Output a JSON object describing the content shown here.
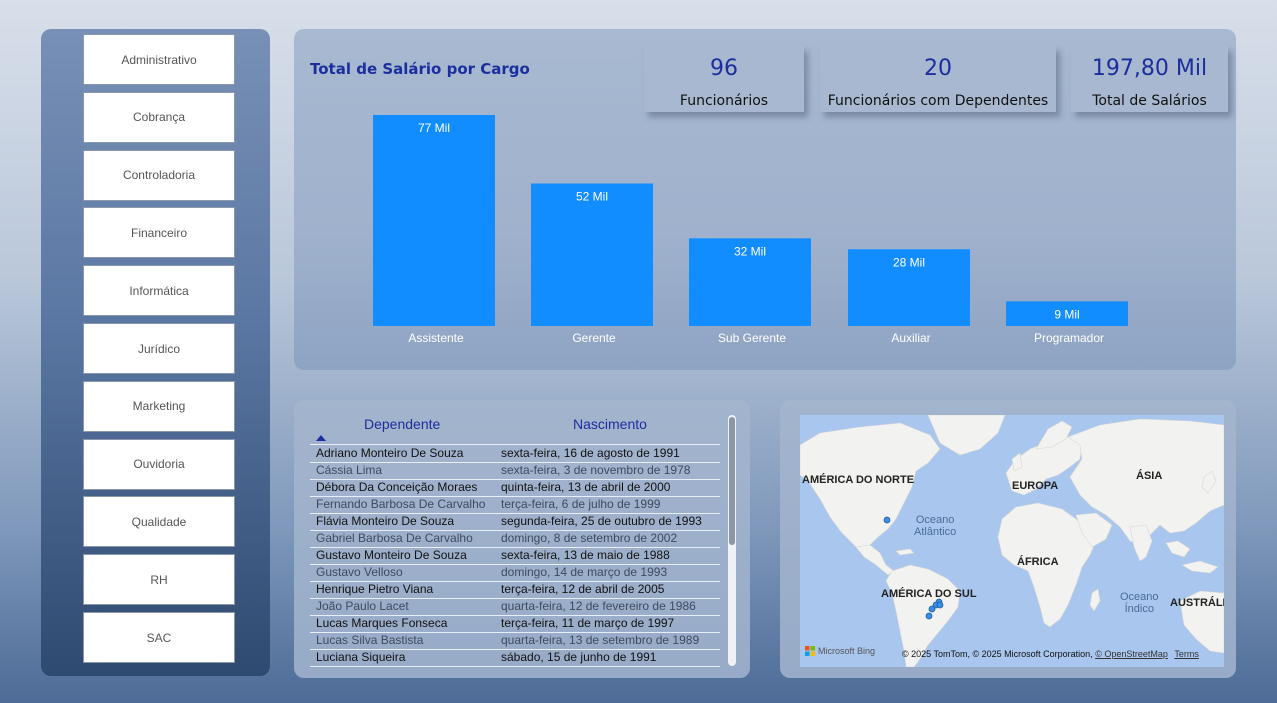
{
  "sidebar": {
    "departments": [
      "Administrativo",
      "Cobrança",
      "Controladoria",
      "Financeiro",
      "Informática",
      "Jurídico",
      "Marketing",
      "Ouvidoria",
      "Qualidade",
      "RH",
      "SAC"
    ]
  },
  "kpis": [
    {
      "value": "96",
      "label": "Funcionários"
    },
    {
      "value": "20",
      "label": "Funcionários com Dependentes"
    },
    {
      "value": "197,80 Mil",
      "label": "Total de Salários"
    }
  ],
  "chart_data": {
    "type": "bar",
    "title": "Total de Salário por Cargo",
    "categories": [
      "Assistente",
      "Gerente",
      "Sub Gerente",
      "Auxiliar",
      "Programador"
    ],
    "values": [
      77,
      52,
      32,
      28,
      9
    ],
    "value_labels": [
      "77 Mil",
      "52 Mil",
      "32 Mil",
      "28 Mil",
      "9 Mil"
    ],
    "bar_color": "#118dff",
    "ylim": [
      0,
      77
    ]
  },
  "table": {
    "headers": [
      "Dependente",
      "Nascimento"
    ],
    "sort_icon": "triangle-up-icon",
    "rows": [
      [
        "Adriano Monteiro De Souza",
        "sexta-feira, 16 de agosto de 1991"
      ],
      [
        "Cássia Lima",
        "sexta-feira, 3 de novembro de 1978"
      ],
      [
        "Débora Da Conceição Moraes",
        "quinta-feira, 13 de abril de 2000"
      ],
      [
        "Fernando Barbosa De Carvalho",
        "terça-feira, 6 de julho de 1999"
      ],
      [
        "Flávia Monteiro De Souza",
        "segunda-feira, 25 de outubro de 1993"
      ],
      [
        "Gabriel Barbosa De Carvalho",
        "domingo, 8 de setembro de 2002"
      ],
      [
        "Gustavo Monteiro De Souza",
        "sexta-feira, 13 de maio de 1988"
      ],
      [
        "Gustavo Velloso",
        "domingo, 14 de março de 1993"
      ],
      [
        "Henrique Pietro Viana",
        "terça-feira, 12 de abril de 2005"
      ],
      [
        "João Paulo Lacet",
        "quarta-feira, 12 de fevereiro de 1986"
      ],
      [
        "Lucas Marques Fonseca",
        "terça-feira, 11 de março de 1997"
      ],
      [
        "Lucas Silva Bastista",
        "quarta-feira, 13 de setembro de 1989"
      ],
      [
        "Luciana Siqueira",
        "sábado, 15 de junho de 1991"
      ]
    ]
  },
  "map": {
    "labels": {
      "north_america": "AMÉRICA DO NORTE",
      "europe": "EUROPA",
      "asia": "ÁSIA",
      "africa": "ÁFRICA",
      "south_america": "AMÉRICA DO SUL",
      "australia": "AUSTRÁLI"
    },
    "oceans": {
      "atlantic": "Oceano\nAtlântico",
      "indian": "Oceano\nÍndico"
    },
    "logo": "Microsoft Bing",
    "attribution_prefix": "© 2025 TomTom, © 2025 Microsoft Corporation,",
    "osm_link": "© OpenStreetMap",
    "terms_link": "Terms",
    "land_color": "#f2f2f0",
    "water_color": "#a9c6ee",
    "marker_color": "#3a8de0"
  }
}
